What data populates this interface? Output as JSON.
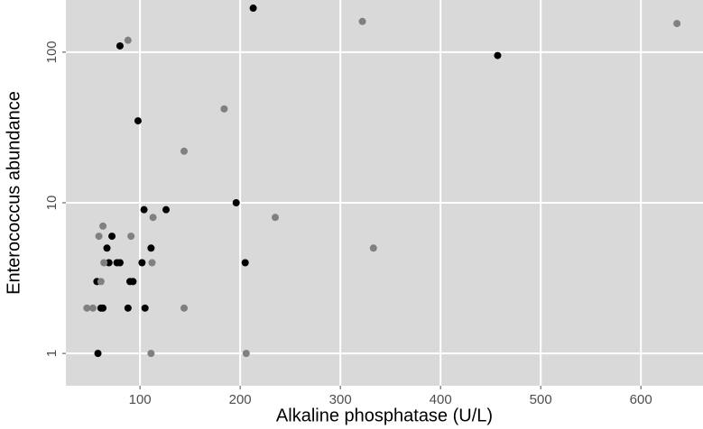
{
  "chart_data": {
    "type": "scatter",
    "x_label": "Alkaline phosphatase (U/L)",
    "y_label": "Enterococcus abundance",
    "xlim": [
      26,
      662
    ],
    "ylim": [
      0.61,
      222
    ],
    "xticks": [
      100,
      200,
      300,
      400,
      500,
      600
    ],
    "yticks": [
      1,
      10,
      100
    ],
    "y_log": true,
    "grid": true,
    "series": [
      {
        "color": "#000000",
        "x": [
          213,
          80,
          457,
          98,
          196,
          104,
          126,
          72,
          67,
          111,
          69,
          77,
          80,
          102,
          205,
          57,
          90,
          93,
          61,
          63,
          88,
          105,
          58
        ],
        "values": [
          196,
          110,
          95,
          35,
          10,
          9,
          9,
          6,
          5,
          5,
          4,
          4,
          4,
          4,
          4,
          3,
          3,
          3,
          2,
          2,
          2,
          2,
          1
        ]
      },
      {
        "color": "#808080",
        "x": [
          88,
          322,
          636,
          184,
          144,
          235,
          113,
          63,
          59,
          91,
          333,
          64,
          112,
          61,
          47,
          53,
          144,
          111,
          206
        ],
        "values": [
          120,
          160,
          155,
          42,
          22,
          8,
          8,
          7,
          6,
          6,
          5,
          4,
          4,
          3,
          2,
          2,
          2,
          1,
          1
        ]
      }
    ]
  }
}
